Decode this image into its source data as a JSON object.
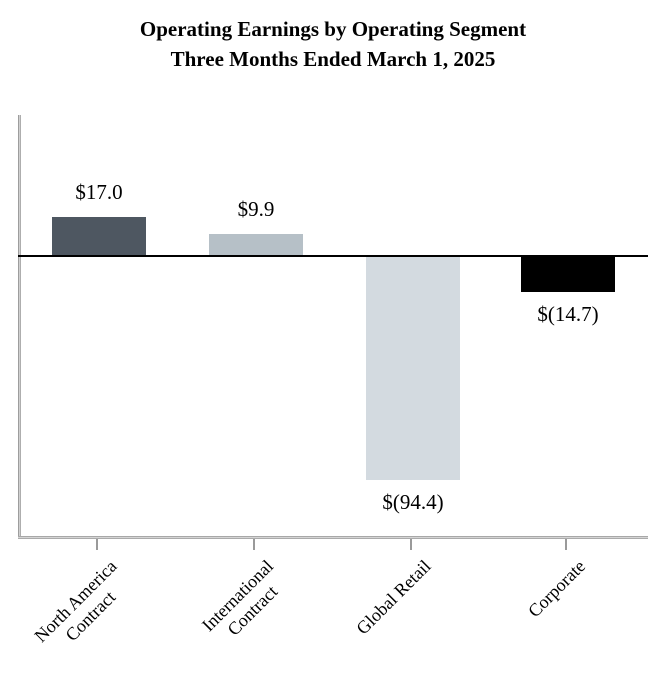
{
  "chart_data": {
    "type": "bar",
    "title": "Operating Earnings by Operating Segment",
    "subtitle": "Three Months Ended March 1, 2025",
    "categories": [
      "North America Contract",
      "International Contract",
      "Global Retail",
      "Corporate"
    ],
    "category_lines": [
      [
        "North America",
        "Contract"
      ],
      [
        "International",
        "Contract"
      ],
      [
        "Global Retail"
      ],
      [
        "Corporate"
      ]
    ],
    "values": [
      17.0,
      9.9,
      -94.4,
      -14.7
    ],
    "data_labels": [
      "$17.0",
      "$9.9",
      "$(94.4)",
      "$(14.7)"
    ],
    "bar_colors": [
      "#4e5761",
      "#b6c0c7",
      "#d3dae0",
      "#000000"
    ],
    "axis_color": "#9a9a9a",
    "zero_line_color": "#000000",
    "ylim": [
      -120,
      60
    ],
    "grid": false,
    "legend": "none",
    "y_axis_ticks": "none"
  }
}
